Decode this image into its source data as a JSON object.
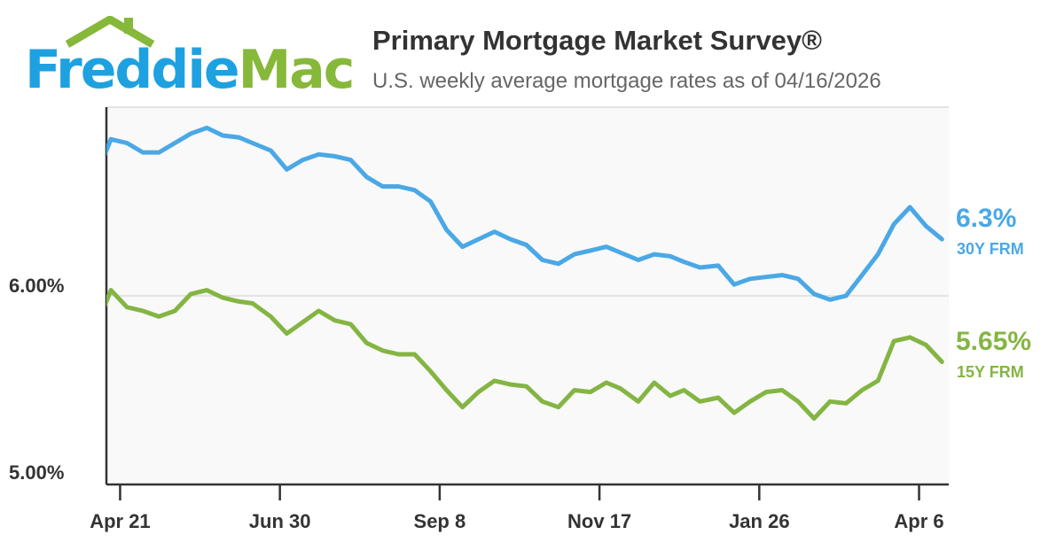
{
  "logo": {
    "text_part1": "Freddie",
    "text_part2": "Mac"
  },
  "header": {
    "title": "Primary Mortgage Market Survey®",
    "subtitle": "U.S. weekly average mortgage rates as of 04/16/2026"
  },
  "colors": {
    "blue": "#4aa8e6",
    "green": "#84b543",
    "grid": "#e3e3e3",
    "plot_bg": "#f9f9f9",
    "axis": "#333333"
  },
  "chart_data": {
    "type": "line",
    "title": "Primary Mortgage Market Survey®",
    "ylim": [
      5.0,
      7.0
    ],
    "y_ticks": [
      {
        "value": 6.0,
        "label": "6.00%"
      },
      {
        "value": 5.0,
        "label": "5.00%"
      }
    ],
    "x_ticks": [
      {
        "date": "2025-04-21",
        "label": "Apr 21"
      },
      {
        "date": "2025-06-30",
        "label": "Jun 30"
      },
      {
        "date": "2025-09-08",
        "label": "Sep 8"
      },
      {
        "date": "2025-11-17",
        "label": "Nov 17"
      },
      {
        "date": "2026-01-26",
        "label": "Jan 26"
      },
      {
        "date": "2026-04-06",
        "label": "Apr 6"
      }
    ],
    "x_range": [
      "2025-04-15",
      "2026-04-19"
    ],
    "grid": "horizontal",
    "x": [
      "2025-04-10",
      "2025-04-17",
      "2025-04-24",
      "2025-05-01",
      "2025-05-08",
      "2025-05-15",
      "2025-05-22",
      "2025-05-29",
      "2025-06-05",
      "2025-06-12",
      "2025-06-18",
      "2025-06-26",
      "2025-07-03",
      "2025-07-10",
      "2025-07-17",
      "2025-07-24",
      "2025-07-31",
      "2025-08-07",
      "2025-08-14",
      "2025-08-21",
      "2025-08-28",
      "2025-09-04",
      "2025-09-11",
      "2025-09-18",
      "2025-09-25",
      "2025-10-02",
      "2025-10-09",
      "2025-10-16",
      "2025-10-23",
      "2025-10-30",
      "2025-11-06",
      "2025-11-13",
      "2025-11-20",
      "2025-11-26",
      "2025-12-04",
      "2025-12-11",
      "2025-12-18",
      "2025-12-24",
      "2025-12-31",
      "2026-01-08",
      "2026-01-15",
      "2026-01-22",
      "2026-01-29",
      "2026-02-05",
      "2026-02-12",
      "2026-02-19",
      "2026-02-26",
      "2026-03-05",
      "2026-03-12",
      "2026-03-19",
      "2026-03-26",
      "2026-04-02",
      "2026-04-09",
      "2026-04-16"
    ],
    "series": [
      {
        "name": "30Y FRM",
        "end_label": "6.3%",
        "color": "#4aa8e6",
        "values": [
          6.62,
          6.83,
          6.81,
          6.76,
          6.76,
          6.81,
          6.86,
          6.89,
          6.85,
          6.84,
          6.81,
          6.77,
          6.67,
          6.72,
          6.75,
          6.74,
          6.72,
          6.63,
          6.58,
          6.58,
          6.56,
          6.5,
          6.35,
          6.26,
          6.3,
          6.34,
          6.3,
          6.27,
          6.19,
          6.17,
          6.22,
          6.24,
          6.26,
          6.23,
          6.19,
          6.22,
          6.21,
          6.18,
          6.15,
          6.16,
          6.06,
          6.09,
          6.1,
          6.11,
          6.09,
          6.01,
          5.98,
          6.0,
          6.11,
          6.22,
          6.38,
          6.47,
          6.37,
          6.3
        ]
      },
      {
        "name": "15Y FRM",
        "end_label": "5.65%",
        "color": "#84b543",
        "values": [
          5.82,
          6.03,
          5.94,
          5.92,
          5.89,
          5.92,
          6.01,
          6.03,
          5.99,
          5.97,
          5.96,
          5.89,
          5.8,
          5.86,
          5.92,
          5.87,
          5.85,
          5.75,
          5.71,
          5.69,
          5.69,
          5.6,
          5.5,
          5.41,
          5.49,
          5.55,
          5.53,
          5.52,
          5.44,
          5.41,
          5.5,
          5.49,
          5.54,
          5.51,
          5.44,
          5.54,
          5.47,
          5.5,
          5.44,
          5.46,
          5.38,
          5.44,
          5.49,
          5.5,
          5.44,
          5.35,
          5.44,
          5.43,
          5.5,
          5.55,
          5.76,
          5.78,
          5.74,
          5.65
        ]
      }
    ]
  }
}
